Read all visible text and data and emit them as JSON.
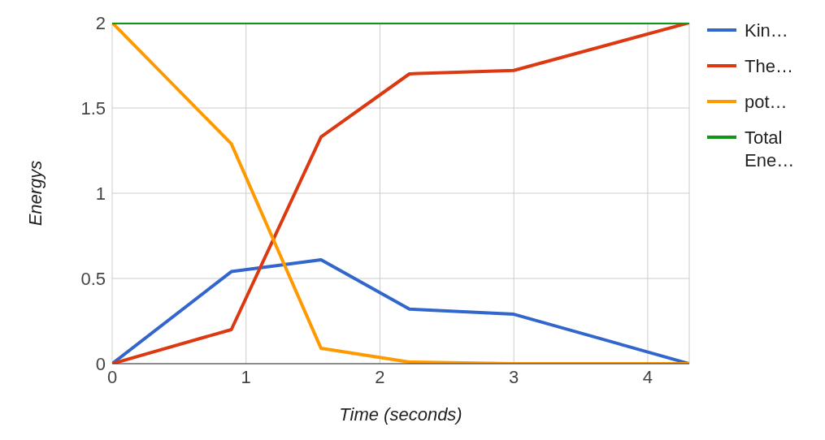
{
  "chart_data": {
    "type": "line",
    "xlabel": "Time (seconds)",
    "ylabel": "Energys",
    "x": [
      0,
      0.89,
      1.56,
      2.22,
      3.0,
      4.31
    ],
    "series": [
      {
        "name": "Kin…",
        "color": "#3366cc",
        "values": [
          0,
          0.54,
          0.61,
          0.32,
          0.29,
          0
        ]
      },
      {
        "name": "The…",
        "color": "#dc3912",
        "values": [
          0,
          0.2,
          1.33,
          1.7,
          1.72,
          2
        ]
      },
      {
        "name": "pot…",
        "color": "#ff9900",
        "values": [
          2,
          1.29,
          0.09,
          0.01,
          0,
          0
        ]
      },
      {
        "name": "Total Ene…",
        "color": "#109618",
        "values": [
          2,
          2,
          2,
          2,
          2,
          2
        ]
      }
    ],
    "xlim": [
      0,
      4.31
    ],
    "xticks": [
      0,
      1,
      2,
      3,
      4
    ],
    "ylim": [
      0,
      2
    ],
    "yticks": [
      0,
      0.5,
      1,
      1.5,
      2
    ],
    "grid": true,
    "legend": "right",
    "marker": "none",
    "line_style": "solid"
  }
}
